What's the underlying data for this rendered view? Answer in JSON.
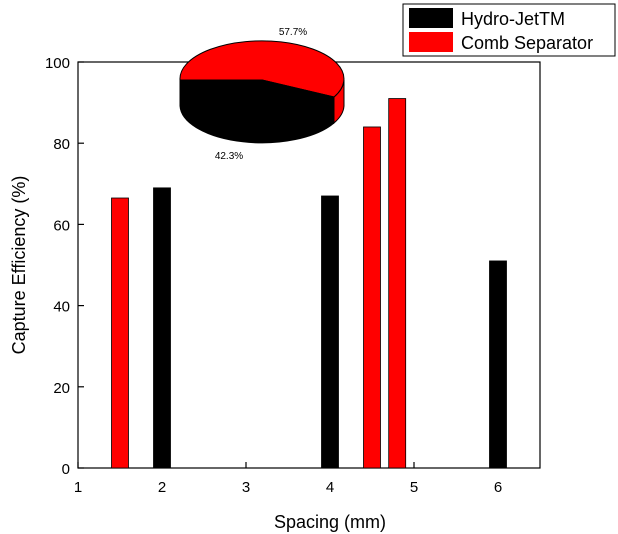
{
  "chart_data": {
    "type": "bar",
    "xlabel": "Spacing (mm)",
    "ylabel": "Capture Efficiency (%)",
    "xlim": [
      1,
      6.5
    ],
    "ylim": [
      0,
      100
    ],
    "x_ticks": [
      1,
      2,
      3,
      4,
      5,
      6
    ],
    "y_ticks": [
      0,
      20,
      40,
      60,
      80,
      100
    ],
    "legend_position": "top-right",
    "series": [
      {
        "name": "Hydro-JetTM",
        "color": "#000000",
        "points": [
          {
            "x": 2.0,
            "y": 69
          },
          {
            "x": 4.0,
            "y": 67
          },
          {
            "x": 6.0,
            "y": 51
          }
        ]
      },
      {
        "name": "Comb Separator",
        "color": "#ff0000",
        "points": [
          {
            "x": 1.5,
            "y": 66.5
          },
          {
            "x": 4.5,
            "y": 84
          },
          {
            "x": 4.8,
            "y": 91
          }
        ]
      }
    ],
    "inset_pie": {
      "type": "pie",
      "slices": [
        {
          "series": "Comb Separator",
          "value": 57.7,
          "label": "57.7%",
          "color": "#ff0000"
        },
        {
          "series": "Hydro-JetTM",
          "value": 42.3,
          "label": "42.3%",
          "color": "#000000"
        }
      ]
    }
  }
}
